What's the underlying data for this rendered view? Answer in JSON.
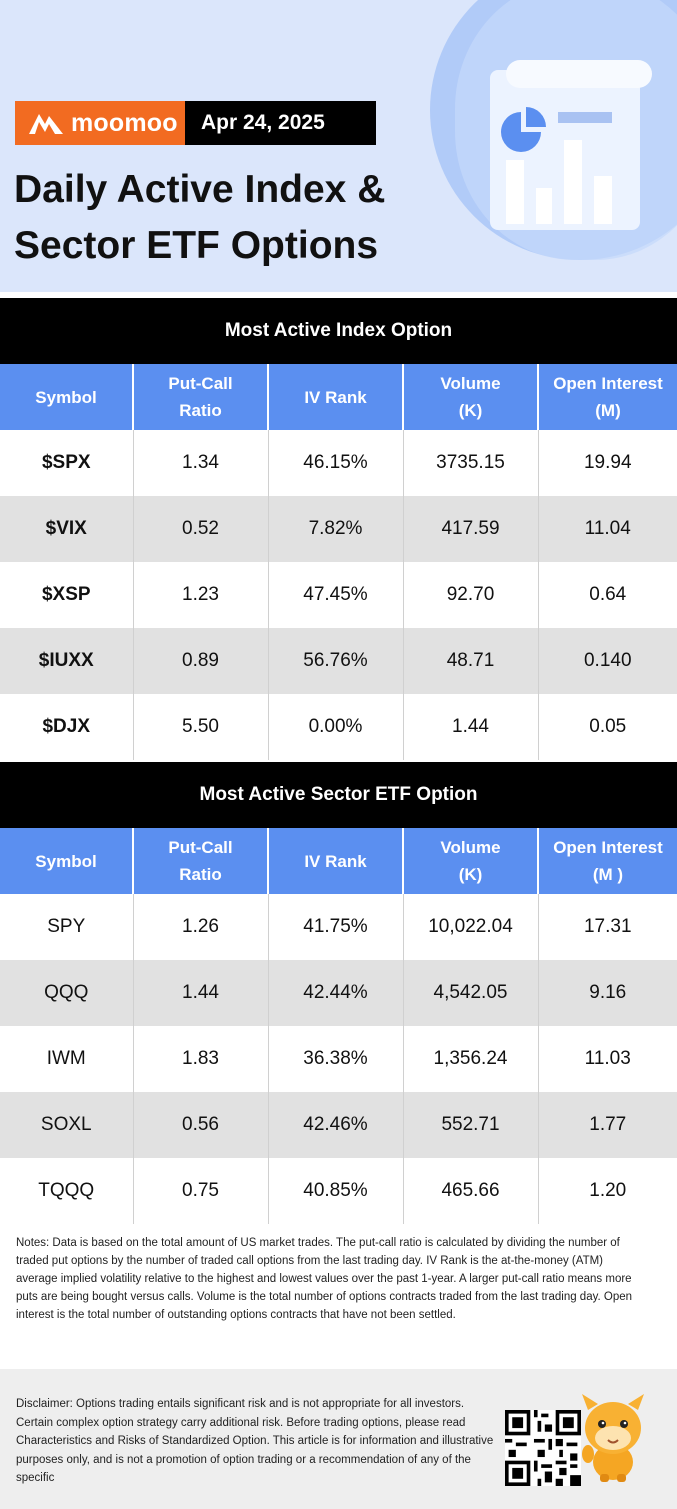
{
  "brand": {
    "name": "moomoo",
    "date": "Apr 24, 2025"
  },
  "title": {
    "line1": "Daily Active Index &",
    "line2": "Sector ETF Options"
  },
  "headers": {
    "symbol": "Symbol",
    "put_call_1": "Put-Call",
    "put_call_2": "Ratio",
    "iv_rank": "IV Rank",
    "volume_1": "Volume",
    "volume_2": "(K)",
    "oi_1": "Open Interest",
    "oi_2": "(M)",
    "oi_2_sector": "(M )"
  },
  "index_section": {
    "title": "Most Active Index Option",
    "rows": [
      {
        "symbol": "$SPX",
        "put_call": "1.34",
        "iv_rank": "46.15%",
        "volume": "3735.15",
        "open_interest": "19.94"
      },
      {
        "symbol": "$VIX",
        "put_call": "0.52",
        "iv_rank": "7.82%",
        "volume": "417.59",
        "open_interest": "11.04"
      },
      {
        "symbol": "$XSP",
        "put_call": "1.23",
        "iv_rank": "47.45%",
        "volume": "92.70",
        "open_interest": "0.64"
      },
      {
        "symbol": "$IUXX",
        "put_call": "0.89",
        "iv_rank": "56.76%",
        "volume": "48.71",
        "open_interest": "0.140"
      },
      {
        "symbol": "$DJX",
        "put_call": "5.50",
        "iv_rank": "0.00%",
        "volume": "1.44",
        "open_interest": "0.05"
      }
    ]
  },
  "sector_section": {
    "title": "Most Active Sector ETF Option",
    "rows": [
      {
        "symbol": "SPY",
        "put_call": "1.26",
        "iv_rank": "41.75%",
        "volume": "10,022.04",
        "open_interest": "17.31"
      },
      {
        "symbol": "QQQ",
        "put_call": "1.44",
        "iv_rank": "42.44%",
        "volume": "4,542.05",
        "open_interest": "9.16"
      },
      {
        "symbol": "IWM",
        "put_call": "1.83",
        "iv_rank": "36.38%",
        "volume": "1,356.24",
        "open_interest": "11.03"
      },
      {
        "symbol": "SOXL",
        "put_call": "0.56",
        "iv_rank": "42.46%",
        "volume": "552.71",
        "open_interest": "1.77"
      },
      {
        "symbol": "TQQQ",
        "put_call": "0.75",
        "iv_rank": "40.85%",
        "volume": "465.66",
        "open_interest": "1.20"
      }
    ]
  },
  "notes": "Notes: Data is based on the total amount of US market trades. The put-call ratio is calculated by dividing the number of traded put options by the number of traded call options from the last trading day. IV Rank is the at-the-money (ATM) average implied volatility relative to the highest and lowest values over the past 1-year. A larger put-call ratio means more puts are being bought versus calls. Volume is the total number of options contracts traded from the last trading day. Open interest is the total number of outstanding options contracts that have not been settled.",
  "disclaimer": "Disclaimer: Options trading entails significant risk and is not appropriate for all investors. Certain complex option strategy carry additional risk. Before trading options, please read Characteristics and Risks of Standardized Option. This article is for information and illustrative purposes only, and is not a promotion of option trading or a recommendation of any of the specific",
  "colors": {
    "brand_orange": "#f26b21",
    "header_blue": "#5b8ff0",
    "header_bg": "#dbe6fb",
    "row_alt": "#e1e1e1"
  },
  "icons": [
    "moomoo-logo-icon",
    "chart-document-icon",
    "qr-code-icon",
    "mascot-icon"
  ]
}
